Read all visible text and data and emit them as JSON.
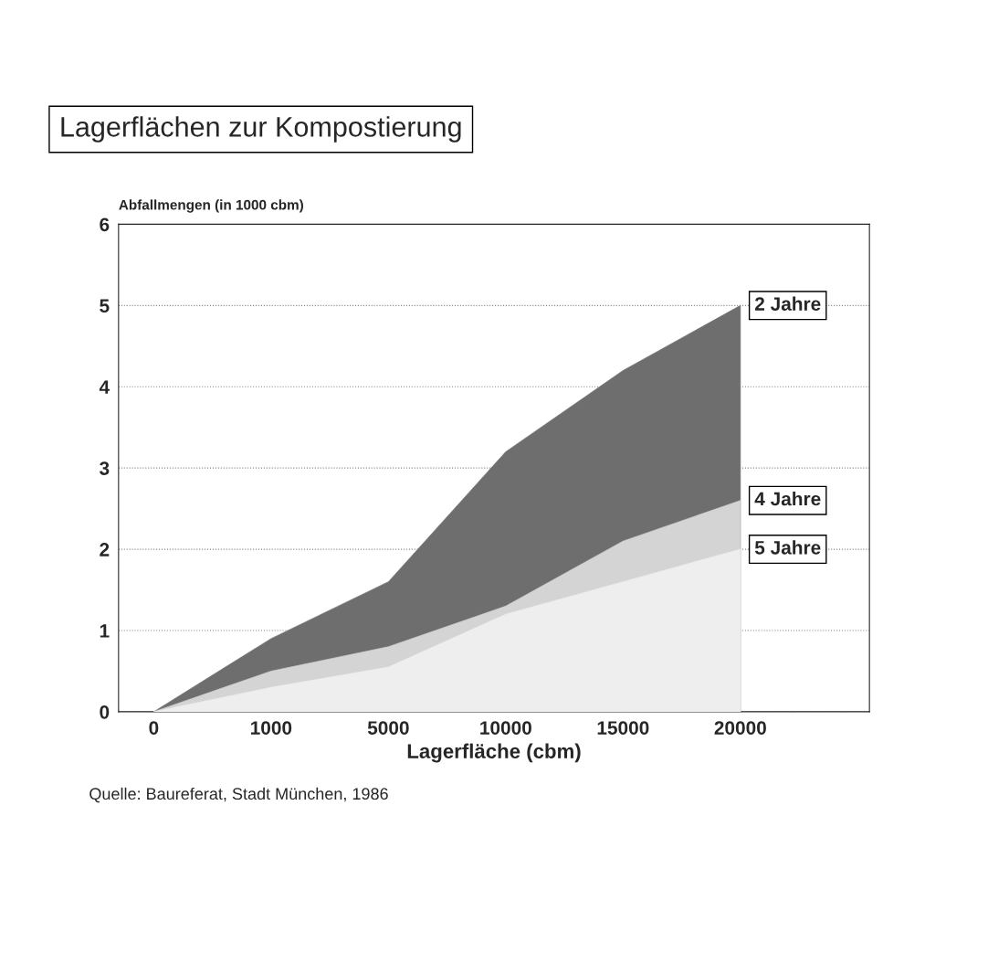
{
  "chart_data": {
    "type": "area",
    "title": "Lagerflächen zur Kompostierung",
    "ylabel": "Abfallmengen (in 1000 cbm)",
    "xlabel": "Lagerfläche (cbm)",
    "categories": [
      "0",
      "1000",
      "5000",
      "10000",
      "15000",
      "20000"
    ],
    "series": [
      {
        "name": "2 Jahre",
        "color": "#6e6e6e",
        "values": [
          0,
          0.9,
          1.6,
          3.2,
          4.2,
          5.0
        ]
      },
      {
        "name": "4 Jahre",
        "color": "#d4d4d4",
        "values": [
          0,
          0.5,
          0.8,
          1.3,
          2.1,
          2.6
        ]
      },
      {
        "name": "5 Jahre",
        "color": "#eeeeee",
        "values": [
          0,
          0.3,
          0.55,
          1.2,
          1.6,
          2.0
        ]
      }
    ],
    "ylim": [
      0,
      6
    ],
    "yticks": [
      0,
      1,
      2,
      3,
      4,
      5,
      6
    ],
    "grid": "y",
    "legend": false,
    "annotations": [
      "Quelle: Baureferat, Stadt München, 1986"
    ]
  }
}
